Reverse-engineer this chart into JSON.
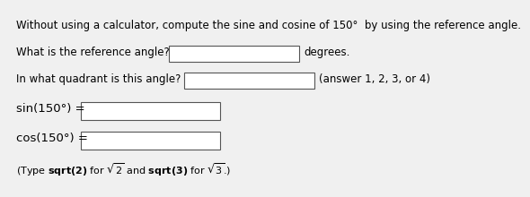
{
  "background_color": "#f0f0f0",
  "text_color": "#000000",
  "line1": "Without using a calculator, compute the sine and cosine of 150°  by using the reference angle.",
  "line2_pre": "What is the reference angle?",
  "line2_post": "degrees.",
  "line3_pre": "In what quadrant is this angle?",
  "line3_post": "(answer 1, 2, 3, or 4)",
  "line4_label": "sin(150°) =",
  "line5_label": "cos(150°) =",
  "line6": "(Type sqrt(2) for √2̅ and sqrt(3) for √3̅.)",
  "box_facecolor": "#ffffff",
  "box_edgecolor": "#555555",
  "font_size": 8.5,
  "font_size_math": 9.5,
  "font_size_note": 8.0
}
